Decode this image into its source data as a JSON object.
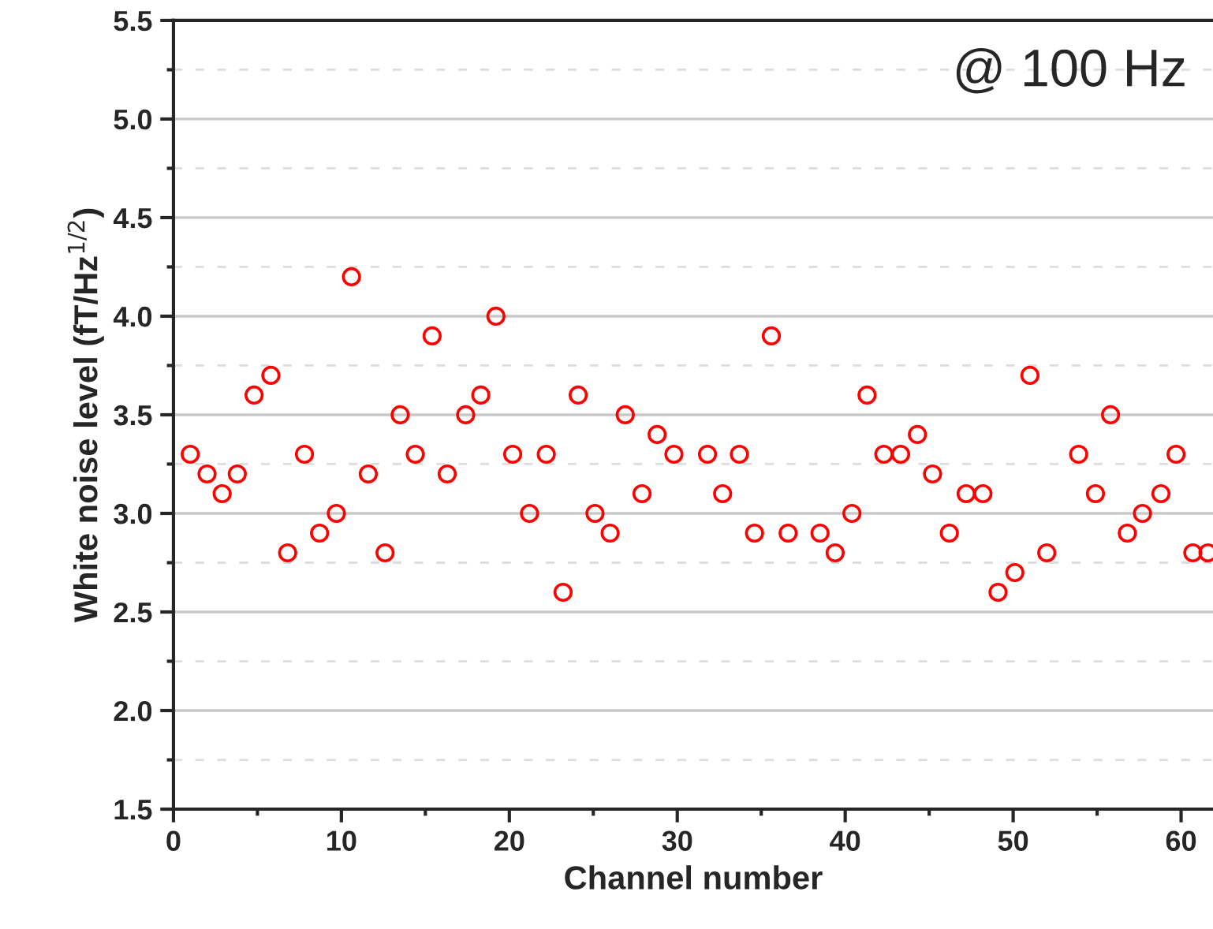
{
  "chart_data": {
    "type": "scatter",
    "xlabel": "Channel number",
    "ylabel": "White noise level (fT/Hz$^{1/2}$)",
    "annotations": [
      "@ 100 Hz"
    ],
    "series": [
      {
        "color": "#ff0000",
        "x": [
          1.0,
          2.0,
          2.9,
          3.8,
          4.8,
          5.8,
          6.8,
          7.8,
          8.7,
          9.7,
          10.6,
          11.6,
          12.6,
          13.5,
          14.4,
          15.4,
          16.3,
          17.4,
          18.3,
          19.2,
          20.2,
          21.2,
          22.2,
          23.2,
          24.1,
          25.1,
          26.0,
          26.9,
          27.9,
          28.8,
          29.8,
          31.8,
          32.7,
          33.7,
          34.6,
          35.6,
          36.6,
          38.5,
          39.4,
          40.4,
          41.3,
          42.3,
          43.3,
          44.3,
          45.2,
          46.2,
          47.2,
          48.2,
          49.1,
          50.1,
          51.0,
          52.0,
          53.9,
          54.9,
          55.8,
          56.8,
          57.7,
          58.8,
          59.7,
          60.7,
          61.6
        ],
        "values": [
          3.3,
          3.2,
          3.1,
          3.2,
          3.6,
          3.7,
          2.8,
          3.3,
          2.9,
          3.0,
          4.2,
          3.2,
          2.8,
          3.5,
          3.3,
          3.9,
          3.2,
          3.5,
          3.6,
          4.0,
          3.3,
          3.0,
          3.3,
          2.6,
          3.6,
          3.0,
          2.9,
          3.5,
          3.1,
          3.4,
          3.3,
          3.3,
          3.1,
          3.3,
          2.9,
          3.9,
          2.9,
          2.9,
          2.8,
          3.0,
          3.6,
          3.3,
          3.3,
          3.4,
          3.2,
          2.9,
          3.1,
          3.1,
          2.6,
          2.7,
          3.7,
          2.8,
          3.3,
          3.1,
          3.5,
          2.9,
          3.0,
          3.1,
          3.3,
          2.8,
          2.8
        ]
      }
    ],
    "xlim": [
      0,
      61.9
    ],
    "xticks": [
      0,
      10,
      20,
      30,
      40,
      50,
      60
    ],
    "ylim": [
      1.5,
      5.5
    ],
    "yticks": [
      {
        "value": 1.5,
        "label": "1.5"
      },
      {
        "value": 2.0,
        "label": "2.0"
      },
      {
        "value": 2.5,
        "label": "2.5"
      },
      {
        "value": 3.0,
        "label": "3.0"
      },
      {
        "value": 3.5,
        "label": "3.5"
      },
      {
        "value": 4.0,
        "label": "4.0"
      },
      {
        "value": 4.5,
        "label": "4.5"
      },
      {
        "value": 5.0,
        "label": "5.0"
      },
      {
        "value": 5.5,
        "label": "5.5"
      }
    ],
    "grid": "y",
    "marker": "circle",
    "legend": false
  }
}
